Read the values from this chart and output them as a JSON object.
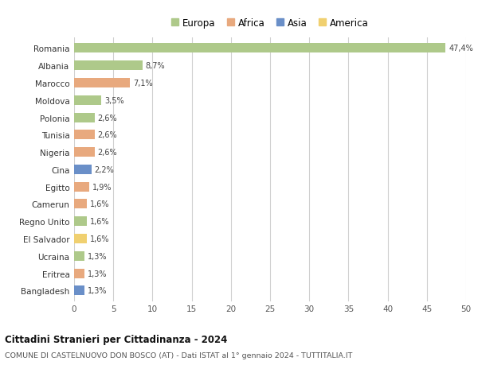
{
  "countries": [
    "Romania",
    "Albania",
    "Marocco",
    "Moldova",
    "Polonia",
    "Tunisia",
    "Nigeria",
    "Cina",
    "Egitto",
    "Camerun",
    "Regno Unito",
    "El Salvador",
    "Ucraina",
    "Eritrea",
    "Bangladesh"
  ],
  "values": [
    47.4,
    8.7,
    7.1,
    3.5,
    2.6,
    2.6,
    2.6,
    2.2,
    1.9,
    1.6,
    1.6,
    1.6,
    1.3,
    1.3,
    1.3
  ],
  "labels": [
    "47,4%",
    "8,7%",
    "7,1%",
    "3,5%",
    "2,6%",
    "2,6%",
    "2,6%",
    "2,2%",
    "1,9%",
    "1,6%",
    "1,6%",
    "1,6%",
    "1,3%",
    "1,3%",
    "1,3%"
  ],
  "continents": [
    "Europa",
    "Europa",
    "Africa",
    "Europa",
    "Europa",
    "Africa",
    "Africa",
    "Asia",
    "Africa",
    "Africa",
    "Europa",
    "America",
    "Europa",
    "Africa",
    "Asia"
  ],
  "colors": {
    "Europa": "#aec98a",
    "Africa": "#e8a97e",
    "Asia": "#6a8fc8",
    "America": "#f0d070"
  },
  "xlim": [
    0,
    50
  ],
  "xticks": [
    0,
    5,
    10,
    15,
    20,
    25,
    30,
    35,
    40,
    45,
    50
  ],
  "title": "Cittadini Stranieri per Cittadinanza - 2024",
  "subtitle": "COMUNE DI CASTELNUOVO DON BOSCO (AT) - Dati ISTAT al 1° gennaio 2024 - TUTTITALIA.IT",
  "background_color": "#ffffff",
  "grid_color": "#d0d0d0",
  "bar_height": 0.55
}
